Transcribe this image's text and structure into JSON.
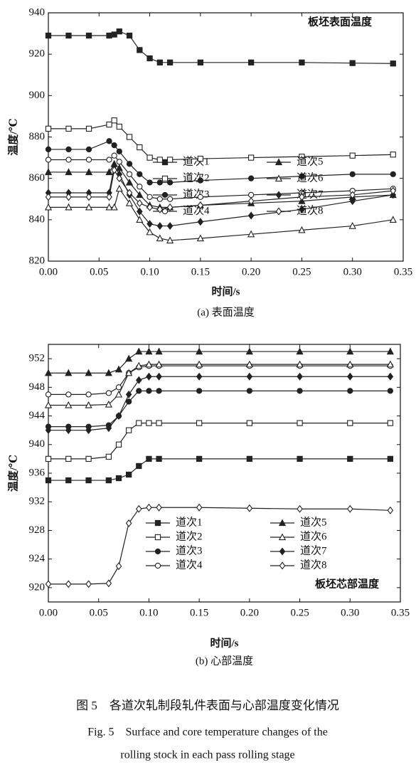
{
  "chart_data": [
    {
      "type": "line",
      "title": "板坯表面温度",
      "xlabel": "时间/s",
      "ylabel": "温度/℃",
      "caption": "(a) 表面温度",
      "xlim": [
        0,
        0.35
      ],
      "xticks": [
        {
          "value": 0,
          "label": "0.00"
        },
        0.05,
        {
          "value": 0.1,
          "label": "0.10"
        },
        0.15,
        {
          "value": 0.2,
          "label": "0.20"
        },
        0.25,
        {
          "value": 0.3,
          "label": "0.30"
        },
        0.35
      ],
      "ylim": [
        820,
        940
      ],
      "yticks": [
        820,
        840,
        860,
        880,
        900,
        920,
        940
      ],
      "x": [
        0,
        0.02,
        0.04,
        0.06,
        0.065,
        0.07,
        0.08,
        0.09,
        0.1,
        0.11,
        0.12,
        0.15,
        0.2,
        0.25,
        0.3,
        0.34
      ],
      "series": [
        {
          "name": "道次1",
          "color": "#222",
          "marker": "square",
          "filled": true,
          "values": [
            929,
            929,
            929,
            929,
            929.5,
            931,
            929,
            922,
            918,
            916,
            916,
            916,
            916,
            916,
            915.7,
            915.5
          ]
        },
        {
          "name": "道次2",
          "color": "#222",
          "marker": "square",
          "filled": false,
          "values": [
            884,
            884,
            884,
            886,
            888,
            885,
            880,
            875,
            870,
            869,
            869,
            869.5,
            870,
            870.5,
            871,
            871.5
          ]
        },
        {
          "name": "道次3",
          "color": "#222",
          "marker": "circle",
          "filled": true,
          "values": [
            874,
            874,
            874,
            878,
            876,
            873,
            867,
            862,
            858,
            858,
            858,
            859,
            860,
            861,
            862,
            862
          ]
        },
        {
          "name": "道次4",
          "color": "#222",
          "marker": "circle",
          "filled": false,
          "values": [
            869,
            869,
            869,
            869,
            871,
            868,
            862,
            856,
            851,
            850,
            850,
            851,
            852,
            853,
            854,
            855
          ]
        },
        {
          "name": "道次5",
          "color": "#222",
          "marker": "triangle",
          "filled": true,
          "values": [
            863,
            863,
            863,
            863,
            867,
            865,
            858,
            852,
            847,
            846,
            846,
            847,
            848,
            849,
            851,
            852
          ]
        },
        {
          "name": "道次6",
          "color": "#222",
          "marker": "triangle",
          "filled": false,
          "values": [
            846,
            846,
            846,
            846,
            846,
            855,
            848,
            840,
            834,
            831,
            830,
            831,
            833,
            835,
            837,
            840
          ]
        },
        {
          "name": "道次7",
          "color": "#222",
          "marker": "diamond",
          "filled": true,
          "values": [
            853,
            853,
            853,
            853,
            866,
            862,
            852,
            844,
            838,
            837,
            837,
            839,
            842,
            845,
            849,
            852
          ]
        },
        {
          "name": "道次8",
          "color": "#222",
          "marker": "diamond",
          "filled": false,
          "values": [
            851,
            851,
            851,
            851,
            864,
            860,
            853,
            848,
            846,
            845,
            846,
            847,
            849,
            851,
            852,
            854
          ]
        }
      ]
    },
    {
      "type": "line",
      "title": "板坯芯部温度",
      "xlabel": "时间/s",
      "ylabel": "温度/℃",
      "caption": "(b) 心部温度",
      "xlim": [
        0,
        0.35
      ],
      "xticks": [
        {
          "value": 0,
          "label": "0.00"
        },
        0.05,
        {
          "value": 0.1,
          "label": "0.10"
        },
        0.15,
        {
          "value": 0.2,
          "label": "0.20"
        },
        0.25,
        {
          "value": 0.3,
          "label": "0.30"
        },
        0.35
      ],
      "ylim": [
        918,
        954
      ],
      "yticks": [
        920,
        924,
        928,
        932,
        936,
        940,
        944,
        948,
        952
      ],
      "x": [
        0,
        0.02,
        0.04,
        0.06,
        0.07,
        0.08,
        0.09,
        0.1,
        0.11,
        0.15,
        0.2,
        0.25,
        0.3,
        0.34
      ],
      "series": [
        {
          "name": "道次1",
          "color": "#222",
          "marker": "square",
          "filled": true,
          "values": [
            935,
            935,
            935,
            935,
            935.3,
            935.8,
            937,
            938,
            938,
            938,
            938,
            938,
            938,
            938
          ]
        },
        {
          "name": "道次2",
          "color": "#222",
          "marker": "square",
          "filled": false,
          "values": [
            938,
            938,
            938,
            938.3,
            940,
            942,
            943,
            943,
            943,
            943,
            943,
            943,
            943,
            943
          ]
        },
        {
          "name": "道次3",
          "color": "#222",
          "marker": "circle",
          "filled": true,
          "values": [
            942.5,
            942.5,
            942.5,
            942.7,
            944,
            946,
            947.5,
            947.5,
            947.5,
            947.5,
            947.5,
            947.5,
            947.5,
            947.5
          ]
        },
        {
          "name": "道次4",
          "color": "#222",
          "marker": "circle",
          "filled": false,
          "values": [
            947,
            947,
            947,
            947.2,
            948,
            950,
            950.8,
            951,
            951,
            951,
            951,
            951,
            951,
            951
          ]
        },
        {
          "name": "道次5",
          "color": "#222",
          "marker": "triangle",
          "filled": true,
          "values": [
            950,
            950,
            950,
            950,
            950.5,
            952,
            953,
            953,
            953,
            953,
            953,
            953,
            953,
            953
          ]
        },
        {
          "name": "道次6",
          "color": "#222",
          "marker": "triangle",
          "filled": false,
          "values": [
            945.5,
            945.5,
            945.5,
            945.6,
            947,
            950,
            951,
            951.2,
            951.2,
            951.2,
            951.2,
            951.2,
            951.2,
            951.2
          ]
        },
        {
          "name": "道次7",
          "color": "#222",
          "marker": "diamond",
          "filled": true,
          "values": [
            942,
            942,
            942,
            942.3,
            944,
            947,
            949,
            949.5,
            949.5,
            949.5,
            949.5,
            949.5,
            949.5,
            949.5
          ]
        },
        {
          "name": "道次8",
          "color": "#222",
          "marker": "diamond",
          "filled": false,
          "values": [
            920.5,
            920.5,
            920.5,
            920.6,
            923,
            929,
            931,
            931.2,
            931.2,
            931.2,
            931.1,
            931,
            931,
            930.8
          ]
        }
      ]
    }
  ],
  "figure_caption": {
    "zh": "图 5　各道次轧制段轧件表面与心部温度变化情况",
    "en": [
      "Fig. 5　Surface and core temperature changes of the",
      "rolling stock in each pass rolling stage"
    ]
  }
}
